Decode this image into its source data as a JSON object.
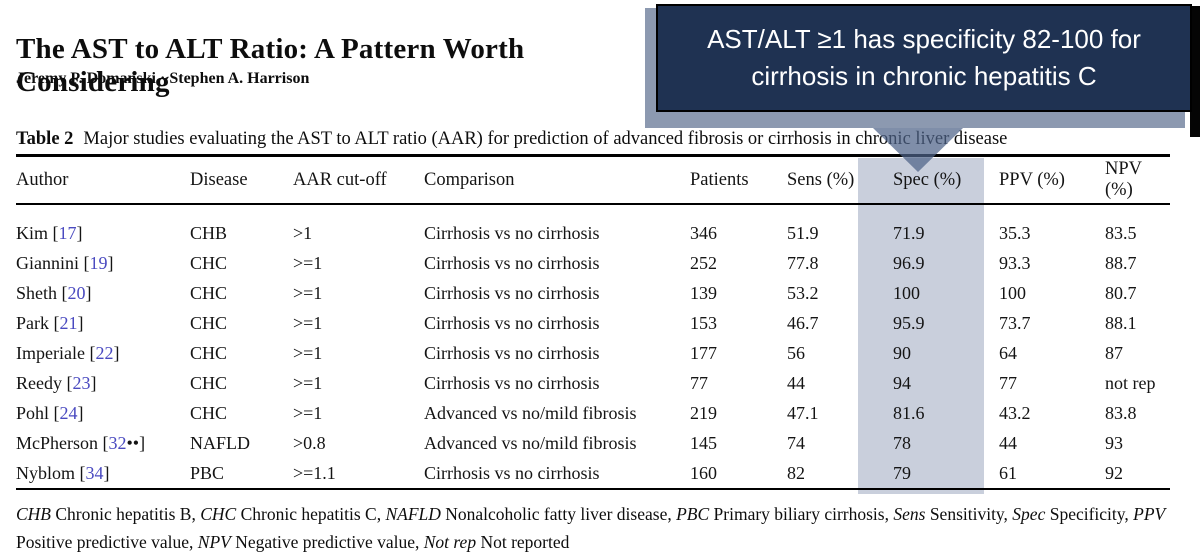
{
  "paper": {
    "title": "The AST to ALT Ratio: A Pattern Worth Considering",
    "authors": "Jeremy P. Domanski · Stephen A. Harrison"
  },
  "callout": {
    "lines": [
      "AST/ALT ≥1 has specificity 82-100 for",
      "cirrhosis in chronic hepatitis C"
    ],
    "bg_color": "#1f3252",
    "text_color": "#ffffff"
  },
  "table": {
    "caption_label": "Table 2",
    "caption_text": "Major studies evaluating the AST to ALT ratio (AAR) for prediction of advanced fibrosis or cirrhosis in chronic liver disease",
    "columns": [
      "Author",
      "Disease",
      "AAR cut-off",
      "Comparison",
      "Patients",
      "Sens (%)",
      "Spec (%)",
      "PPV (%)",
      "NPV (%)"
    ],
    "highlighted_column": "Spec (%)",
    "highlight_color": "#c9cfdc",
    "citation_color": "#4a4ac0",
    "rows": [
      {
        "author": "Kim",
        "ref": "17",
        "ref_suffix": "",
        "disease": "CHB",
        "aar_cutoff": ">1",
        "comparison": "Cirrhosis vs no cirrhosis",
        "patients": "346",
        "sens": "51.9",
        "spec": "71.9",
        "ppv": "35.3",
        "npv": "83.5"
      },
      {
        "author": "Giannini",
        "ref": "19",
        "ref_suffix": "",
        "disease": "CHC",
        "aar_cutoff": ">=1",
        "comparison": "Cirrhosis vs no cirrhosis",
        "patients": "252",
        "sens": "77.8",
        "spec": "96.9",
        "ppv": "93.3",
        "npv": "88.7"
      },
      {
        "author": "Sheth",
        "ref": "20",
        "ref_suffix": "",
        "disease": "CHC",
        "aar_cutoff": ">=1",
        "comparison": "Cirrhosis vs no cirrhosis",
        "patients": "139",
        "sens": "53.2",
        "spec": "100",
        "ppv": "100",
        "npv": "80.7"
      },
      {
        "author": "Park",
        "ref": "21",
        "ref_suffix": "",
        "disease": "CHC",
        "aar_cutoff": ">=1",
        "comparison": "Cirrhosis vs no cirrhosis",
        "patients": "153",
        "sens": "46.7",
        "spec": "95.9",
        "ppv": "73.7",
        "npv": "88.1"
      },
      {
        "author": "Imperiale",
        "ref": "22",
        "ref_suffix": "",
        "disease": "CHC",
        "aar_cutoff": ">=1",
        "comparison": "Cirrhosis vs no cirrhosis",
        "patients": "177",
        "sens": "56",
        "spec": "90",
        "ppv": "64",
        "npv": "87"
      },
      {
        "author": "Reedy",
        "ref": "23",
        "ref_suffix": "",
        "disease": "CHC",
        "aar_cutoff": ">=1",
        "comparison": "Cirrhosis vs no cirrhosis",
        "patients": "77",
        "sens": "44",
        "spec": "94",
        "ppv": "77",
        "npv": "not rep"
      },
      {
        "author": "Pohl",
        "ref": "24",
        "ref_suffix": "",
        "disease": "CHC",
        "aar_cutoff": ">=1",
        "comparison": "Advanced vs no/mild fibrosis",
        "patients": "219",
        "sens": "47.1",
        "spec": "81.6",
        "ppv": "43.2",
        "npv": "83.8"
      },
      {
        "author": "McPherson",
        "ref": "32",
        "ref_suffix": "••",
        "disease": "NAFLD",
        "aar_cutoff": ">0.8",
        "comparison": "Advanced vs no/mild fibrosis",
        "patients": "145",
        "sens": "74",
        "spec": "78",
        "ppv": "44",
        "npv": "93"
      },
      {
        "author": "Nyblom",
        "ref": "34",
        "ref_suffix": "",
        "disease": "PBC",
        "aar_cutoff": ">=1.1",
        "comparison": "Cirrhosis vs no cirrhosis",
        "patients": "160",
        "sens": "82",
        "spec": "79",
        "ppv": "61",
        "npv": "92"
      }
    ],
    "footnote_terms": [
      {
        "abbr": "CHB",
        "definition": "Chronic hepatitis B"
      },
      {
        "abbr": "CHC",
        "definition": "Chronic hepatitis C"
      },
      {
        "abbr": "NAFLD",
        "definition": "Nonalcoholic fatty liver disease"
      },
      {
        "abbr": "PBC",
        "definition": "Primary biliary cirrhosis"
      },
      {
        "abbr": "Sens",
        "definition": "Sensitivity"
      },
      {
        "abbr": "Spec",
        "definition": "Specificity"
      },
      {
        "abbr": "PPV",
        "definition": "Positive predictive value"
      },
      {
        "abbr": "NPV",
        "definition": "Negative predictive value"
      },
      {
        "abbr": "Not rep",
        "definition": "Not reported"
      }
    ]
  }
}
